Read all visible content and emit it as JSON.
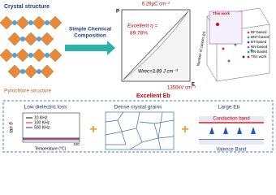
{
  "top": {
    "crystal_title": "Crystal structure",
    "crystal_caption": "Pyrochlore structure",
    "arrow_label_1": "Simple Chemical",
    "arrow_label_2": "Composition",
    "loop_p_max": "6.29μC cm⁻²",
    "loop_p_axis": "P",
    "loop_eta_label": "Excellent η =",
    "loop_eta_value": "89.78%",
    "loop_wrec": "Wrec=3.89 J cm⁻³",
    "loop_e_axis": "E",
    "loop_e_max": "1350kV cm⁻¹",
    "loop_caption": "Excellent Eb",
    "compare_tag": "This work",
    "compare_axis": "Number of cations (n)",
    "compare_legend": [
      "BF-based",
      "BNT-based",
      "BT-based",
      "NN-based",
      "AN-based",
      "This work"
    ]
  },
  "bottom": {
    "panel1_title": "Low dielectric loss",
    "panel1_legend": [
      "10 KHz",
      "100 KHz",
      "500 KHz"
    ],
    "panel1_ylabel": "tan δ",
    "panel1_xlabel": "Temperature (°C)",
    "panel1_xtick": "100",
    "panel2_title": "Dense crystal grains",
    "panel3_title": "Large Eb",
    "panel3_top": "Conduction band",
    "panel3_bottom": "Valence Band"
  }
}
